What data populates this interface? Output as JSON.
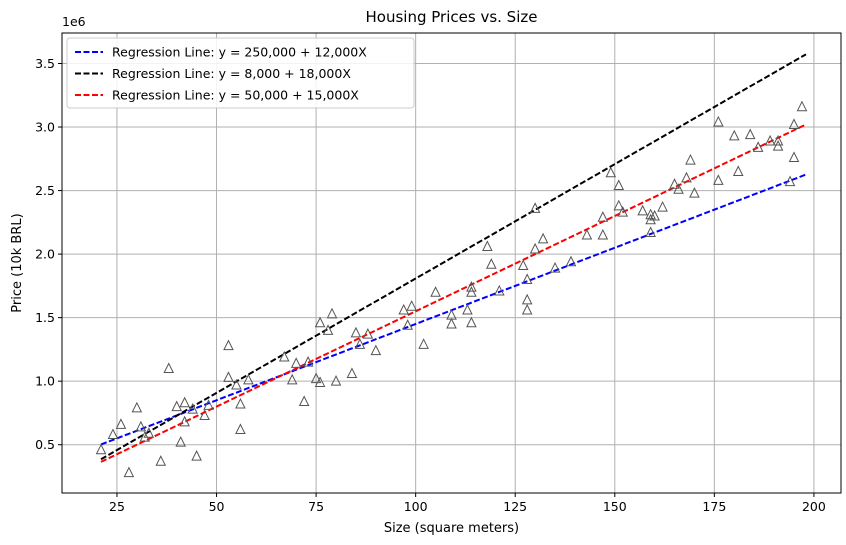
{
  "chart_data": {
    "type": "scatter",
    "title": "Housing Prices vs. Size",
    "xlabel": "Size (square meters)",
    "ylabel": "Price (10k BRL)",
    "y_offset_text": "1e6",
    "xlim": [
      11.2,
      206.8
    ],
    "ylim": [
      120000,
      3740000
    ],
    "xticks": [
      25,
      50,
      75,
      100,
      125,
      150,
      175,
      200
    ],
    "yticks": [
      0.5,
      1.0,
      1.5,
      2.0,
      2.5,
      3.0,
      3.5
    ],
    "grid": true,
    "legend_position": "top-left",
    "lines": [
      {
        "name": "Regression Line: y = 250,000 + 12,000X",
        "color": "#0000ff",
        "intercept": 250000,
        "slope": 12000,
        "x_range": [
          21,
          198
        ]
      },
      {
        "name": "Regression Line: y = 8,000 + 18,000X",
        "color": "#000000",
        "intercept": 8000,
        "slope": 18000,
        "x_range": [
          21,
          198
        ]
      },
      {
        "name": "Regression Line: y = 50,000 + 15,000X",
        "color": "#ff0000",
        "intercept": 50000,
        "slope": 15000,
        "x_range": [
          21,
          198
        ]
      }
    ],
    "points": [
      [
        21,
        460000
      ],
      [
        24,
        580000
      ],
      [
        26,
        660000
      ],
      [
        28,
        280000
      ],
      [
        30,
        790000
      ],
      [
        31,
        640000
      ],
      [
        32,
        560000
      ],
      [
        33,
        590000
      ],
      [
        36,
        370000
      ],
      [
        38,
        1100000
      ],
      [
        40,
        800000
      ],
      [
        41,
        520000
      ],
      [
        42,
        830000
      ],
      [
        42,
        680000
      ],
      [
        44,
        780000
      ],
      [
        45,
        410000
      ],
      [
        47,
        730000
      ],
      [
        48,
        810000
      ],
      [
        53,
        1280000
      ],
      [
        53,
        1030000
      ],
      [
        55,
        970000
      ],
      [
        56,
        620000
      ],
      [
        56,
        820000
      ],
      [
        58,
        1010000
      ],
      [
        67,
        1190000
      ],
      [
        69,
        1010000
      ],
      [
        70,
        1140000
      ],
      [
        72,
        840000
      ],
      [
        73,
        1150000
      ],
      [
        75,
        1020000
      ],
      [
        76,
        1460000
      ],
      [
        76,
        990000
      ],
      [
        78,
        1400000
      ],
      [
        79,
        1530000
      ],
      [
        80,
        1000000
      ],
      [
        84,
        1060000
      ],
      [
        85,
        1380000
      ],
      [
        86,
        1290000
      ],
      [
        88,
        1370000
      ],
      [
        90,
        1240000
      ],
      [
        97,
        1560000
      ],
      [
        98,
        1440000
      ],
      [
        99,
        1590000
      ],
      [
        102,
        1290000
      ],
      [
        105,
        1700000
      ],
      [
        109,
        1450000
      ],
      [
        109,
        1520000
      ],
      [
        113,
        1560000
      ],
      [
        114,
        1460000
      ],
      [
        114,
        1700000
      ],
      [
        114,
        1740000
      ],
      [
        118,
        2060000
      ],
      [
        119,
        1920000
      ],
      [
        121,
        1710000
      ],
      [
        127,
        1910000
      ],
      [
        128,
        1640000
      ],
      [
        128,
        1560000
      ],
      [
        128,
        1800000
      ],
      [
        130,
        2360000
      ],
      [
        130,
        2040000
      ],
      [
        132,
        2120000
      ],
      [
        135,
        1890000
      ],
      [
        139,
        1940000
      ],
      [
        143,
        2150000
      ],
      [
        147,
        2290000
      ],
      [
        147,
        2150000
      ],
      [
        149,
        2640000
      ],
      [
        151,
        2540000
      ],
      [
        151,
        2380000
      ],
      [
        152,
        2330000
      ],
      [
        157,
        2340000
      ],
      [
        159,
        2170000
      ],
      [
        159,
        2270000
      ],
      [
        159,
        2310000
      ],
      [
        160,
        2300000
      ],
      [
        162,
        2370000
      ],
      [
        165,
        2550000
      ],
      [
        166,
        2510000
      ],
      [
        168,
        2600000
      ],
      [
        169,
        2740000
      ],
      [
        170,
        2480000
      ],
      [
        176,
        3040000
      ],
      [
        176,
        2580000
      ],
      [
        180,
        2930000
      ],
      [
        181,
        2650000
      ],
      [
        184,
        2940000
      ],
      [
        186,
        2840000
      ],
      [
        189,
        2890000
      ],
      [
        191,
        2890000
      ],
      [
        191,
        2850000
      ],
      [
        194,
        2570000
      ],
      [
        195,
        3020000
      ],
      [
        195,
        2760000
      ],
      [
        197,
        3160000
      ]
    ]
  }
}
